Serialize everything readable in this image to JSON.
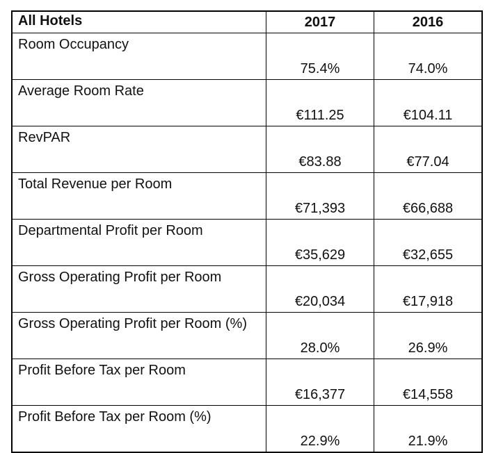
{
  "table": {
    "header": [
      "All Hotels",
      "2017",
      "2016"
    ],
    "rows": [
      [
        "Room Occupancy",
        "75.4%",
        "74.0%"
      ],
      [
        "Average Room Rate",
        "€111.25",
        "€104.11"
      ],
      [
        "RevPAR",
        "€83.88",
        "€77.04"
      ],
      [
        "Total Revenue per Room",
        "€71,393",
        "€66,688"
      ],
      [
        "Departmental Profit per Room",
        "€35,629",
        "€32,655"
      ],
      [
        "Gross Operating Profit per Room",
        "€20,034",
        "€17,918"
      ],
      [
        "Gross Operating Profit per Room (%)",
        "28.0%",
        "26.9%"
      ],
      [
        "Profit Before Tax per Room",
        "€16,377",
        "€14,558"
      ],
      [
        "Profit Before Tax per Room (%)",
        "22.9%",
        "21.9%"
      ]
    ]
  }
}
